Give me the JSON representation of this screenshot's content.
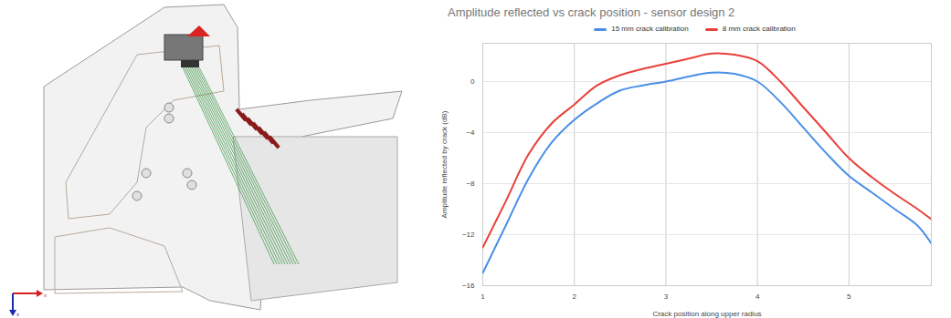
{
  "chart_data": {
    "type": "line",
    "title": "Amplitude reflected vs crack position - sensor design 2",
    "xlabel": "Crack position along upper radius",
    "ylabel": "Amplitude reflected by crack (dB)",
    "x": [
      1,
      1.25,
      1.5,
      1.75,
      2,
      2.25,
      2.5,
      2.75,
      3,
      3.25,
      3.5,
      3.75,
      4,
      4.25,
      4.5,
      4.75,
      5,
      5.25,
      5.5,
      5.75,
      5.9
    ],
    "series": [
      {
        "name": "15 mm crack calibration",
        "color": "#4a8fe7",
        "values": [
          -15,
          -11.3,
          -7.6,
          -4.8,
          -3,
          -1.7,
          -0.7,
          -0.3,
          0,
          0.4,
          0.7,
          0.6,
          0,
          -1.6,
          -3.6,
          -5.6,
          -7.4,
          -8.7,
          -10,
          -11.3,
          -12.7
        ]
      },
      {
        "name": "8 mm crack calibration",
        "color": "#e8413a",
        "values": [
          -13,
          -9.4,
          -5.7,
          -3.3,
          -1.8,
          -0.3,
          0.5,
          1,
          1.4,
          1.8,
          2.2,
          2.1,
          1.6,
          0,
          -2,
          -4,
          -6,
          -7.5,
          -8.8,
          -10,
          -10.8
        ]
      }
    ],
    "xlim": [
      1,
      5.9
    ],
    "xticks": [
      1,
      2,
      3,
      4,
      5
    ],
    "ylim": [
      -16,
      3
    ],
    "yticks": [
      -16,
      -12,
      -8,
      -4,
      0
    ],
    "grid": true,
    "legend": "top"
  },
  "illustration": {
    "axis_labels": [
      "x",
      "z"
    ]
  }
}
